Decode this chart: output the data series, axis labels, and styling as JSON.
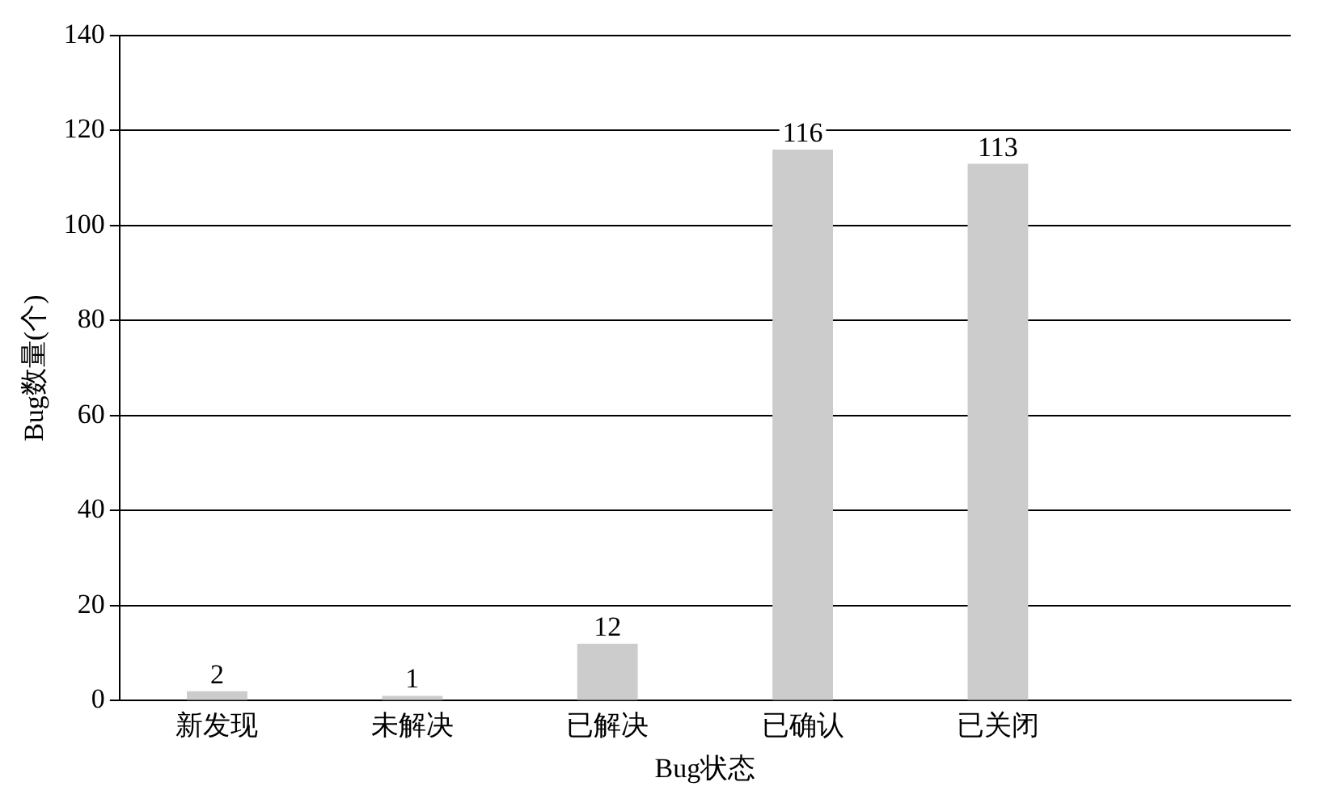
{
  "chart_data": {
    "type": "bar",
    "xlabel": "Bug状态",
    "ylabel": "Bug数量(个)",
    "categories": [
      "新发现",
      "未解决",
      "已解决",
      "已确认",
      "已关闭",
      null
    ],
    "values": [
      2,
      1,
      12,
      116,
      113,
      null
    ],
    "color": "#cccccc",
    "ylim": [
      0,
      140
    ],
    "yticks": [
      0,
      20,
      40,
      60,
      80,
      100,
      120,
      140
    ],
    "grid": "y",
    "legend": false,
    "data_labels": true
  }
}
